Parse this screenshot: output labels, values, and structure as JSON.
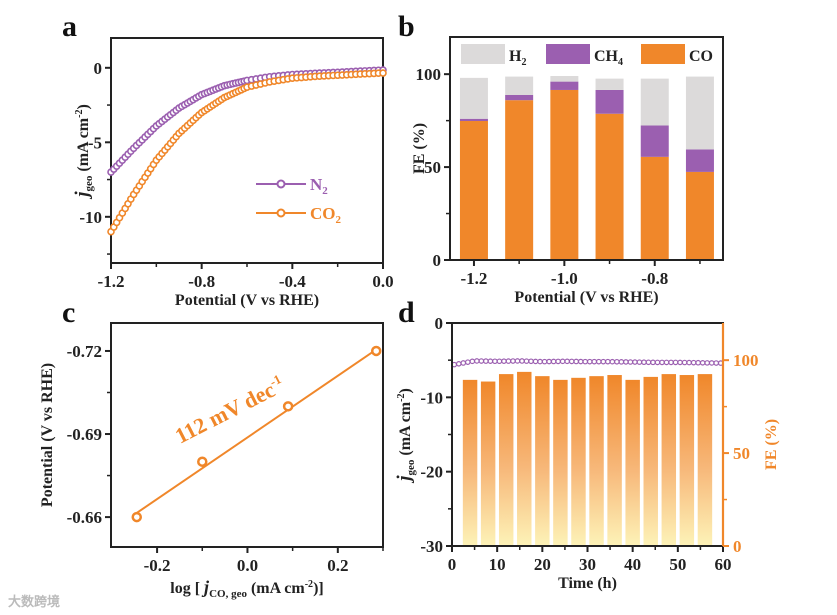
{
  "panel_labels": [
    "a",
    "b",
    "c",
    "d"
  ],
  "watermark": "大数跨境",
  "colors": {
    "orange": "#f0872a",
    "purple": "#9b5fb0",
    "gray": "#dcdada",
    "axis": "#222222"
  },
  "chart_data": [
    {
      "panel": "a",
      "type": "line",
      "xlabel": "Potential (V vs RHE)",
      "ylabel": "j_geo (mA cm^-2)",
      "ylabel_main": "j",
      "ylabel_sub": "geo",
      "ylabel_unit": " (mA cm",
      "ylabel_sup": "-2",
      "xlim": [
        -1.2,
        0.0
      ],
      "ylim": [
        -13.1,
        2.0
      ],
      "xticks": [
        -1.2,
        -0.8,
        -0.4,
        0.0
      ],
      "xtick_labels": [
        "-1.2",
        "-0.8",
        "-0.4",
        "0.0"
      ],
      "yticks": [
        0,
        -5,
        -10
      ],
      "ytick_labels": [
        "0",
        "-5",
        "-10"
      ],
      "legend": {
        "placement": "lower-right",
        "entries": [
          "N2",
          "CO2"
        ]
      },
      "series": [
        {
          "name": "N2",
          "color": "#9b5fb0",
          "x": [
            -1.2,
            -1.1,
            -1.0,
            -0.9,
            -0.8,
            -0.7,
            -0.6,
            -0.5,
            -0.4,
            -0.3,
            -0.2,
            -0.1,
            0.0
          ],
          "y": [
            -7.0,
            -5.4,
            -3.9,
            -2.7,
            -1.8,
            -1.2,
            -0.85,
            -0.6,
            -0.45,
            -0.37,
            -0.3,
            -0.22,
            -0.15
          ]
        },
        {
          "name": "CO2",
          "color": "#f0872a",
          "x": [
            -1.2,
            -1.1,
            -1.0,
            -0.9,
            -0.8,
            -0.7,
            -0.6,
            -0.5,
            -0.4,
            -0.3,
            -0.2,
            -0.1,
            0.0
          ],
          "y": [
            -11.0,
            -8.5,
            -6.2,
            -4.4,
            -3.0,
            -2.0,
            -1.3,
            -0.95,
            -0.7,
            -0.58,
            -0.5,
            -0.42,
            -0.35
          ]
        }
      ]
    },
    {
      "panel": "b",
      "type": "bar",
      "stacked": true,
      "xlabel": "Potential (V vs RHE)",
      "ylabel": "FE (%)",
      "ylim": [
        0,
        120
      ],
      "xlim": [
        -1.253,
        -0.649
      ],
      "categories": [
        -1.2,
        -1.1,
        -1.0,
        -0.9,
        -0.8,
        -0.7
      ],
      "xticks": [
        -1.2,
        -1.0,
        -0.8
      ],
      "xtick_labels": [
        "-1.2",
        "-1.0",
        "-0.8"
      ],
      "yticks": [
        0,
        50,
        100
      ],
      "ytick_labels": [
        "0",
        "50",
        "100"
      ],
      "legend": {
        "placement": "top",
        "entries": [
          "H2",
          "CH4",
          "CO"
        ]
      },
      "series": [
        {
          "name": "CO",
          "color": "#f0872a",
          "values": [
            74.8,
            86.0,
            91.5,
            78.7,
            55.5,
            47.4
          ]
        },
        {
          "name": "CH4",
          "color": "#9b5fb0",
          "values": [
            1.2,
            2.8,
            4.5,
            12.8,
            16.9,
            12.1
          ]
        },
        {
          "name": "H2",
          "color": "#dcdada",
          "values": [
            22.0,
            9.9,
            3.0,
            6.1,
            25.2,
            39.2
          ]
        }
      ]
    },
    {
      "panel": "c",
      "type": "scatter",
      "xlabel": "log [j_CO,geo (mA cm^-2)]",
      "ylabel": "Potential (V vs RHE)",
      "xlim": [
        -0.302,
        0.3
      ],
      "ylim": [
        -0.6492,
        -0.7301
      ],
      "xticks": [
        -0.2,
        0.0,
        0.2
      ],
      "xtick_labels": [
        "-0.2",
        "0.0",
        "0.2"
      ],
      "yticks": [
        -0.72,
        -0.69,
        -0.66
      ],
      "ytick_labels": [
        "-0.72",
        "-0.69",
        "-0.66"
      ],
      "x": [
        -0.245,
        -0.1,
        0.09,
        0.285
      ],
      "y": [
        -0.66,
        -0.68,
        -0.7,
        -0.72
      ],
      "fit": {
        "x": [
          -0.245,
          0.285
        ],
        "y": [
          -0.6615,
          -0.7205
        ]
      },
      "annotation": "112 mV dec",
      "annotation_sup": "-1"
    },
    {
      "panel": "d",
      "type": "bar+line",
      "xlabel": "Time (h)",
      "ylabel_left": "j_geo (mA cm^-2)",
      "ylabel_right": "FE (%)",
      "xlim": [
        0,
        60
      ],
      "ylim_left": [
        -30,
        0
      ],
      "ylim_right": [
        0,
        120
      ],
      "xticks": [
        0,
        10,
        20,
        30,
        40,
        50,
        60
      ],
      "xtick_labels": [
        "0",
        "10",
        "20",
        "30",
        "40",
        "50",
        "60"
      ],
      "yticks_left": [
        0,
        -10,
        -20,
        -30
      ],
      "ytick_labels_left": [
        "0",
        "-10",
        "-20",
        "-30"
      ],
      "yticks_right": [
        100,
        50,
        0
      ],
      "ytick_labels_right": [
        "100",
        "50",
        "0"
      ],
      "bars": {
        "name": "FE CO",
        "x": [
          4,
          8,
          12,
          16,
          20,
          24,
          28,
          32,
          36,
          40,
          44,
          48,
          52,
          56
        ],
        "values": [
          89.4,
          88.5,
          92.5,
          93.7,
          91.4,
          89.4,
          90.5,
          91.4,
          92.0,
          89.4,
          91.0,
          92.5,
          92.0,
          92.5
        ]
      },
      "line": {
        "name": "j_geo",
        "x": [
          0.5,
          5,
          10,
          15,
          20,
          25,
          30,
          35,
          40,
          45,
          50,
          55,
          60
        ],
        "y": [
          -5.6,
          -5.1,
          -5.15,
          -5.1,
          -5.2,
          -5.15,
          -5.2,
          -5.2,
          -5.25,
          -5.3,
          -5.3,
          -5.35,
          -5.4
        ]
      }
    }
  ]
}
